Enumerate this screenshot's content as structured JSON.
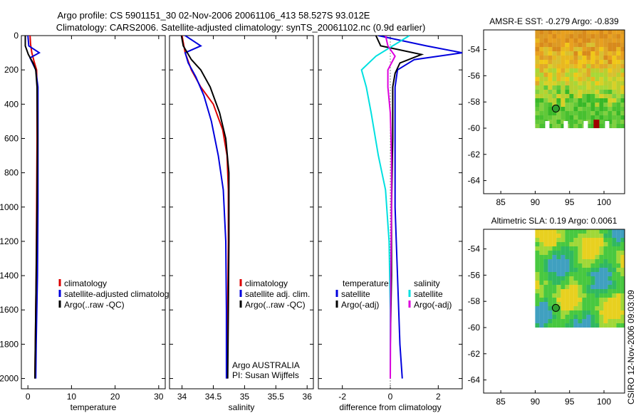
{
  "header": {
    "title_line1": "Argo profile: CS 5901151_30 02-Nov-2006 20061106_413 58.527S 93.012E",
    "title_line2": "Climatology: CARS2006. Satellite-adjusted climatology: synTS_20061102.nc (0.9d earlier)"
  },
  "colors": {
    "climatology": "#dd0000",
    "satellite": "#0000dd",
    "argo": "#000000",
    "salinity_sat": "#00e0e0",
    "salinity_argo": "#dd00dd"
  },
  "chart_data": [
    {
      "type": "line",
      "id": "temperature",
      "xlabel": "temperature",
      "ylabel": "",
      "xlim": [
        -1.5,
        31.5
      ],
      "ylim": [
        2060,
        0
      ],
      "xticks": [
        "0",
        "10",
        "20",
        "30"
      ],
      "xtick_values": [
        0,
        10,
        20,
        30
      ],
      "yticks": [
        "0",
        "200",
        "400",
        "600",
        "800",
        "1000",
        "1200",
        "1400",
        "1600",
        "1800",
        "2000"
      ],
      "ytick_values": [
        0,
        200,
        400,
        600,
        800,
        1000,
        1200,
        1400,
        1600,
        1800,
        2000
      ],
      "legend": [
        "climatology",
        "satellite-adjusted climatology",
        "Argo(..raw -QC)"
      ],
      "series": [
        {
          "name": "climatology",
          "color": "#dd0000",
          "points": [
            [
              0.5,
              0
            ],
            [
              0.6,
              50
            ],
            [
              0.9,
              100
            ],
            [
              1.4,
              150
            ],
            [
              2.0,
              200
            ],
            [
              2.1,
              300
            ],
            [
              2.1,
              600
            ],
            [
              2.0,
              1000
            ],
            [
              1.9,
              1400
            ],
            [
              1.7,
              1800
            ],
            [
              1.6,
              2000
            ]
          ]
        },
        {
          "name": "satellite-adjusted climatology",
          "color": "#0000dd",
          "points": [
            [
              0.0,
              0
            ],
            [
              0.2,
              60
            ],
            [
              2.6,
              100
            ],
            [
              0.5,
              130
            ],
            [
              1.8,
              200
            ],
            [
              2.3,
              300
            ],
            [
              2.3,
              600
            ],
            [
              2.3,
              1000
            ],
            [
              2.2,
              1400
            ],
            [
              1.9,
              1800
            ],
            [
              1.8,
              2000
            ]
          ]
        },
        {
          "name": "Argo(..raw -QC)",
          "color": "#000000",
          "points": [
            [
              -0.6,
              0
            ],
            [
              -0.6,
              60
            ],
            [
              0.1,
              110
            ],
            [
              1.2,
              160
            ],
            [
              1.8,
              200
            ],
            [
              2.1,
              300
            ],
            [
              2.2,
              600
            ],
            [
              2.1,
              1000
            ],
            [
              1.9,
              1400
            ],
            [
              1.7,
              1800
            ],
            [
              1.6,
              2000
            ]
          ]
        }
      ]
    },
    {
      "type": "line",
      "id": "salinity",
      "xlabel": "salinity",
      "xlim": [
        33.8,
        36.1
      ],
      "ylim": [
        2060,
        0
      ],
      "xticks": [
        "34",
        "34.5",
        "35",
        "35.5",
        "36"
      ],
      "xtick_values": [
        34,
        34.5,
        35,
        35.5,
        36
      ],
      "legend": [
        "climatology",
        "satellite adj. clim.",
        "Argo(..raw -QC)"
      ],
      "annotation": [
        "Argo AUSTRALIA",
        "PI: Susan Wijffels"
      ],
      "series": [
        {
          "name": "climatology",
          "color": "#dd0000",
          "points": [
            [
              34.0,
              0
            ],
            [
              34.02,
              40
            ],
            [
              34.05,
              100
            ],
            [
              34.15,
              200
            ],
            [
              34.3,
              300
            ],
            [
              34.5,
              400
            ],
            [
              34.65,
              550
            ],
            [
              34.72,
              700
            ],
            [
              34.74,
              900
            ],
            [
              34.74,
              1200
            ],
            [
              34.73,
              1600
            ],
            [
              34.72,
              2000
            ]
          ]
        },
        {
          "name": "satellite adj. clim.",
          "color": "#0000dd",
          "points": [
            [
              34.05,
              0
            ],
            [
              34.3,
              60
            ],
            [
              34.05,
              100
            ],
            [
              34.1,
              160
            ],
            [
              34.22,
              240
            ],
            [
              34.35,
              350
            ],
            [
              34.47,
              500
            ],
            [
              34.58,
              700
            ],
            [
              34.66,
              900
            ],
            [
              34.7,
              1200
            ],
            [
              34.71,
              1600
            ],
            [
              34.71,
              2000
            ]
          ]
        },
        {
          "name": "Argo(..raw -QC)",
          "color": "#000000",
          "points": [
            [
              33.99,
              0
            ],
            [
              34.02,
              60
            ],
            [
              34.15,
              140
            ],
            [
              34.3,
              200
            ],
            [
              34.45,
              300
            ],
            [
              34.6,
              450
            ],
            [
              34.7,
              600
            ],
            [
              34.75,
              800
            ],
            [
              34.75,
              1200
            ],
            [
              34.74,
              1600
            ],
            [
              34.73,
              2000
            ]
          ]
        }
      ]
    },
    {
      "type": "line",
      "id": "difference",
      "xlabel": "difference from climatology",
      "xlim": [
        -3,
        3
      ],
      "ylim": [
        2060,
        0
      ],
      "xticks": [
        "-2",
        "0",
        "2"
      ],
      "xtick_values": [
        -2,
        0,
        2
      ],
      "legend_left": [
        "temperature",
        "satellite",
        "Argo(-adj)"
      ],
      "legend_right": [
        "salinity",
        "satellite",
        "Argo(-adj)"
      ],
      "series": [
        {
          "name": "temperature satellite",
          "color": "#0000dd",
          "points": [
            [
              -0.5,
              0
            ],
            [
              1.5,
              60
            ],
            [
              3.0,
              100
            ],
            [
              1.0,
              140
            ],
            [
              0.3,
              200
            ],
            [
              0.2,
              300
            ],
            [
              0.2,
              600
            ],
            [
              0.2,
              1000
            ],
            [
              0.3,
              1400
            ],
            [
              0.4,
              1800
            ],
            [
              0.5,
              2000
            ]
          ]
        },
        {
          "name": "temperature Argo(-adj)",
          "color": "#000000",
          "points": [
            [
              -0.6,
              0
            ],
            [
              -0.4,
              60
            ],
            [
              1.3,
              110
            ],
            [
              0.4,
              160
            ],
            [
              0.2,
              220
            ],
            [
              0.1,
              300
            ],
            [
              0.1,
              600
            ],
            [
              0.05,
              1000
            ],
            [
              0.05,
              1400
            ],
            [
              0.0,
              1800
            ],
            [
              0.0,
              2000
            ]
          ]
        },
        {
          "name": "salinity satellite",
          "color": "#00e0e0",
          "points": [
            [
              0.8,
              0
            ],
            [
              0.1,
              60
            ],
            [
              -0.6,
              120
            ],
            [
              -1.2,
              200
            ],
            [
              -1.0,
              300
            ],
            [
              -0.8,
              450
            ],
            [
              -0.5,
              700
            ],
            [
              -0.2,
              900
            ],
            [
              -0.05,
              1200
            ],
            [
              0.0,
              1600
            ],
            [
              0.0,
              2000
            ]
          ]
        },
        {
          "name": "salinity Argo(-adj)",
          "color": "#dd00dd",
          "points": [
            [
              -0.2,
              0
            ],
            [
              -0.1,
              60
            ],
            [
              0.2,
              120
            ],
            [
              -0.1,
              200
            ],
            [
              -0.1,
              300
            ],
            [
              0.0,
              450
            ],
            [
              0.05,
              700
            ],
            [
              0.05,
              1000
            ],
            [
              0.02,
              1400
            ],
            [
              0.0,
              2000
            ]
          ]
        }
      ]
    },
    {
      "type": "heatmap",
      "id": "amsr_sst",
      "title": "AMSR-E SST: -0.279 Argo: -0.839",
      "xlim": [
        82.5,
        103
      ],
      "ylim": [
        -65,
        -52.5
      ],
      "xticks": [
        "85",
        "90",
        "95",
        "100"
      ],
      "xtick_values": [
        85,
        90,
        95,
        100
      ],
      "yticks": [
        "-54",
        "-56",
        "-58",
        "-60",
        "-62",
        "-64"
      ],
      "ytick_values": [
        -54,
        -56,
        -58,
        -60,
        -62,
        -64
      ],
      "data_extent": {
        "lon": [
          90,
          103
        ],
        "lat": [
          -60,
          -52.5
        ]
      },
      "marker": {
        "lon": 93.0,
        "lat": -58.5
      }
    },
    {
      "type": "heatmap",
      "id": "altimetric_sla",
      "title": "Altimetric SLA: 0.19 Argo: 0.0061",
      "xlim": [
        82.5,
        103
      ],
      "ylim": [
        -65,
        -52.5
      ],
      "xticks": [
        "85",
        "90",
        "95",
        "100"
      ],
      "xtick_values": [
        85,
        90,
        95,
        100
      ],
      "yticks": [
        "-54",
        "-56",
        "-58",
        "-60",
        "-62",
        "-64"
      ],
      "ytick_values": [
        -54,
        -56,
        -58,
        -60,
        -62,
        -64
      ],
      "data_extent": {
        "lon": [
          90,
          103
        ],
        "lat": [
          -60,
          -52.5
        ]
      },
      "marker": {
        "lon": 93.0,
        "lat": -58.5
      }
    }
  ],
  "footer": {
    "stamp": "CSIRO 12-Nov-2006 09:03:09"
  }
}
